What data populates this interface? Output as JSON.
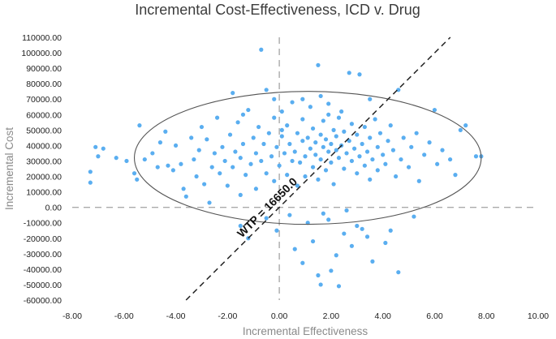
{
  "chart_data": {
    "type": "scatter",
    "title": "Incremental Cost-Effectiveness, ICD v. Drug",
    "xlabel": "Incremental Effectiveness",
    "ylabel": "Incremental Cost",
    "xlim": [
      -8,
      10
    ],
    "ylim": [
      -60000,
      110000
    ],
    "x_ticks": [
      -8,
      -6,
      -4,
      -2,
      0,
      2,
      4,
      6,
      8,
      10
    ],
    "x_tick_labels": [
      "-8.00",
      "-6.00",
      "-4.00",
      "-2.00",
      "0.00",
      "2.00",
      "4.00",
      "6.00",
      "8.00",
      "10.00"
    ],
    "y_ticks": [
      110000,
      100000,
      90000,
      80000,
      70000,
      60000,
      50000,
      40000,
      30000,
      20000,
      10000,
      0,
      -10000,
      -20000,
      -30000,
      -40000,
      -50000,
      -60000
    ],
    "y_tick_labels": [
      "110000.00",
      "100000.00",
      "90000.00",
      "80000.00",
      "70000.00",
      "60000.00",
      "50000.00",
      "40000.00",
      "30000.00",
      "20000.00",
      "10000.00",
      "0.00",
      "-10000.00",
      "-20000.00",
      "-30000.00",
      "-40000.00",
      "-50000.00",
      "-60000.00"
    ],
    "wtp_label": "WTP = 16650.0",
    "wtp_slope": 16650,
    "ellipse": {
      "center": [
        1.1,
        32000
      ],
      "radius_x": 6.7,
      "radius_y": 43000
    },
    "point_color": "#5aaef0",
    "ellipse_color": "#555555",
    "wtp_line_color": "#222222",
    "zero_line_color": "#aaaaaa",
    "series": [
      {
        "name": "Simulation iterations",
        "points": [
          [
            -7.3,
            16000
          ],
          [
            -7.3,
            23000
          ],
          [
            -7.1,
            39000
          ],
          [
            -7.0,
            33000
          ],
          [
            -6.8,
            38000
          ],
          [
            -6.3,
            32000
          ],
          [
            -5.9,
            30000
          ],
          [
            -5.6,
            22000
          ],
          [
            -5.5,
            18000
          ],
          [
            -5.4,
            53000
          ],
          [
            -5.2,
            31000
          ],
          [
            -4.9,
            35000
          ],
          [
            -4.7,
            26000
          ],
          [
            -4.6,
            42000
          ],
          [
            -4.4,
            49000
          ],
          [
            -4.3,
            27000
          ],
          [
            -4.1,
            24000
          ],
          [
            -4.0,
            40000
          ],
          [
            -3.8,
            28000
          ],
          [
            -3.7,
            12000
          ],
          [
            -3.6,
            7000
          ],
          [
            -3.4,
            45000
          ],
          [
            -3.3,
            31000
          ],
          [
            -3.2,
            20000
          ],
          [
            -3.1,
            37000
          ],
          [
            -3.0,
            52000
          ],
          [
            -2.9,
            15000
          ],
          [
            -2.8,
            44000
          ],
          [
            -2.7,
            3000
          ],
          [
            -2.6,
            26000
          ],
          [
            -2.5,
            35000
          ],
          [
            -2.4,
            58000
          ],
          [
            -2.3,
            22000
          ],
          [
            -2.2,
            39000
          ],
          [
            -2.1,
            30000
          ],
          [
            -2.0,
            14000
          ],
          [
            -1.9,
            47000
          ],
          [
            -1.8,
            74000
          ],
          [
            -1.8,
            26000
          ],
          [
            -1.7,
            36000
          ],
          [
            -1.6,
            55000
          ],
          [
            -1.5,
            32000
          ],
          [
            -1.5,
            8000
          ],
          [
            -1.4,
            41000
          ],
          [
            -1.3,
            21000
          ],
          [
            -1.2,
            63000
          ],
          [
            -1.1,
            28000
          ],
          [
            -1.0,
            45000
          ],
          [
            -0.9,
            35000
          ],
          [
            -0.9,
            12000
          ],
          [
            -0.8,
            52000
          ],
          [
            -0.7,
            30000
          ],
          [
            -0.6,
            41000
          ],
          [
            -0.5,
            76000
          ],
          [
            -0.5,
            22000
          ],
          [
            -0.4,
            48000
          ],
          [
            -0.3,
            33000
          ],
          [
            -0.2,
            58000
          ],
          [
            -0.2,
            17000
          ],
          [
            -0.1,
            39000
          ],
          [
            0.0,
            27000
          ],
          [
            0.1,
            46000
          ],
          [
            0.1,
            62000
          ],
          [
            0.2,
            35000
          ],
          [
            0.3,
            21000
          ],
          [
            0.3,
            53000
          ],
          [
            0.4,
            41000
          ],
          [
            0.5,
            30000
          ],
          [
            0.5,
            68000
          ],
          [
            0.6,
            36000
          ],
          [
            0.7,
            48000
          ],
          [
            0.7,
            14000
          ],
          [
            0.8,
            29000
          ],
          [
            0.9,
            43000
          ],
          [
            0.9,
            57000
          ],
          [
            1.0,
            33000
          ],
          [
            1.0,
            20000
          ],
          [
            1.1,
            45000
          ],
          [
            1.2,
            38000
          ],
          [
            1.2,
            65000
          ],
          [
            1.3,
            26000
          ],
          [
            1.3,
            51000
          ],
          [
            1.4,
            34000
          ],
          [
            1.4,
            42000
          ],
          [
            1.5,
            18000
          ],
          [
            1.5,
            92000
          ],
          [
            1.6,
            47000
          ],
          [
            1.6,
            31000
          ],
          [
            1.7,
            39000
          ],
          [
            1.7,
            56000
          ],
          [
            1.8,
            24000
          ],
          [
            1.8,
            44000
          ],
          [
            1.9,
            36000
          ],
          [
            1.9,
            60000
          ],
          [
            2.0,
            29000
          ],
          [
            2.0,
            41000
          ],
          [
            2.1,
            50000
          ],
          [
            2.1,
            15000
          ],
          [
            2.2,
            37000
          ],
          [
            2.2,
            46000
          ],
          [
            2.3,
            32000
          ],
          [
            2.3,
            58000
          ],
          [
            2.4,
            40000
          ],
          [
            2.5,
            25000
          ],
          [
            2.5,
            49000
          ],
          [
            2.6,
            35000
          ],
          [
            2.7,
            43000
          ],
          [
            2.7,
            87000
          ],
          [
            2.8,
            30000
          ],
          [
            2.8,
            54000
          ],
          [
            2.9,
            38000
          ],
          [
            3.0,
            22000
          ],
          [
            3.0,
            47000
          ],
          [
            3.1,
            33000
          ],
          [
            3.1,
            86000
          ],
          [
            3.2,
            41000
          ],
          [
            3.3,
            27000
          ],
          [
            3.3,
            52000
          ],
          [
            3.4,
            36000
          ],
          [
            3.5,
            45000
          ],
          [
            3.5,
            18000
          ],
          [
            3.6,
            31000
          ],
          [
            3.7,
            57000
          ],
          [
            3.8,
            39000
          ],
          [
            3.8,
            24000
          ],
          [
            3.9,
            48000
          ],
          [
            4.0,
            34000
          ],
          [
            4.1,
            28000
          ],
          [
            4.2,
            43000
          ],
          [
            4.3,
            53000
          ],
          [
            4.4,
            37000
          ],
          [
            4.5,
            20000
          ],
          [
            4.6,
            76000
          ],
          [
            4.7,
            31000
          ],
          [
            4.8,
            45000
          ],
          [
            5.0,
            26000
          ],
          [
            5.1,
            39000
          ],
          [
            5.3,
            48000
          ],
          [
            5.4,
            17000
          ],
          [
            5.6,
            34000
          ],
          [
            5.8,
            42000
          ],
          [
            6.0,
            63000
          ],
          [
            6.1,
            28000
          ],
          [
            6.3,
            37000
          ],
          [
            6.6,
            31000
          ],
          [
            6.8,
            21000
          ],
          [
            7.0,
            50000
          ],
          [
            7.2,
            53000
          ],
          [
            7.6,
            33000
          ],
          [
            7.8,
            33000
          ],
          [
            -1.5,
            -12000
          ],
          [
            -1.2,
            -20000
          ],
          [
            -0.5,
            -7000
          ],
          [
            -0.1,
            -15000
          ],
          [
            0.4,
            -5000
          ],
          [
            0.6,
            -27000
          ],
          [
            0.9,
            -36000
          ],
          [
            1.1,
            -10000
          ],
          [
            1.3,
            -22000
          ],
          [
            1.5,
            -44000
          ],
          [
            1.6,
            -50000
          ],
          [
            1.7,
            -4000
          ],
          [
            1.9,
            -8000
          ],
          [
            2.0,
            -41000
          ],
          [
            2.2,
            -31000
          ],
          [
            2.3,
            -51000
          ],
          [
            2.5,
            -17000
          ],
          [
            2.6,
            -2000
          ],
          [
            2.8,
            -25000
          ],
          [
            3.0,
            -12000
          ],
          [
            3.2,
            -14000
          ],
          [
            3.4,
            -19000
          ],
          [
            3.6,
            -35000
          ],
          [
            4.1,
            -23000
          ],
          [
            4.3,
            -15000
          ],
          [
            4.6,
            -42000
          ],
          [
            5.2,
            -6000
          ],
          [
            0.1,
            50000
          ],
          [
            -0.2,
            70000
          ],
          [
            1.6,
            72000
          ],
          [
            -0.7,
            102000
          ],
          [
            3.5,
            70000
          ],
          [
            2.4,
            62000
          ],
          [
            1.9,
            67000
          ],
          [
            -1.4,
            60000
          ],
          [
            0.9,
            70000
          ]
        ]
      }
    ]
  }
}
